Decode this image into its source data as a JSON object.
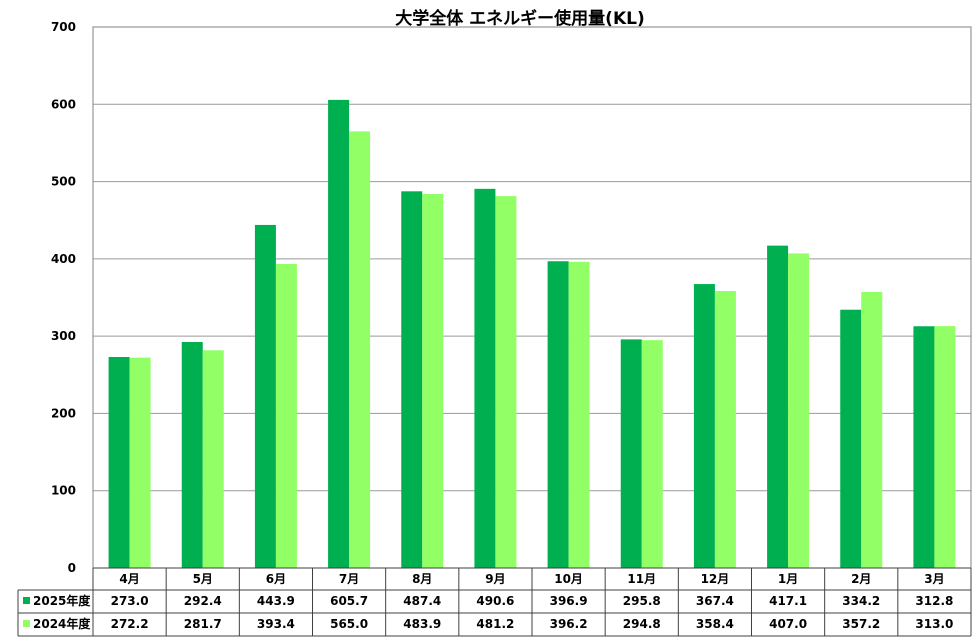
{
  "chart_data": {
    "type": "bar",
    "title": "大学全体 エネルギー使用量(KL)",
    "xlabel": "",
    "ylabel": "",
    "ylim": [
      0,
      700
    ],
    "yticks": [
      "0",
      "100",
      "200",
      "300",
      "400",
      "500",
      "600",
      "700"
    ],
    "ytick_values": [
      0,
      100,
      200,
      300,
      400,
      500,
      600,
      700
    ],
    "grid": true,
    "legend": "table-below",
    "categories": [
      "4月",
      "5月",
      "6月",
      "7月",
      "8月",
      "9月",
      "10月",
      "11月",
      "12月",
      "1月",
      "2月",
      "3月"
    ],
    "series": [
      {
        "name": "2025年度",
        "color": "#00B050",
        "values": [
          273.0,
          292.4,
          443.9,
          605.7,
          487.4,
          490.6,
          396.9,
          295.8,
          367.4,
          417.1,
          334.2,
          312.8
        ],
        "labels": [
          "273.0",
          "292.4",
          "443.9",
          "605.7",
          "487.4",
          "490.6",
          "396.9",
          "295.8",
          "367.4",
          "417.1",
          "334.2",
          "312.8"
        ]
      },
      {
        "name": "2024年度",
        "color": "#92FF66",
        "values": [
          272.2,
          281.7,
          393.4,
          565.0,
          483.9,
          481.2,
          396.2,
          294.8,
          358.4,
          407.0,
          357.2,
          313.0
        ],
        "labels": [
          "272.2",
          "281.7",
          "393.4",
          "565.0",
          "483.9",
          "481.2",
          "396.2",
          "294.8",
          "358.4",
          "407.0",
          "357.2",
          "313.0"
        ]
      }
    ]
  }
}
